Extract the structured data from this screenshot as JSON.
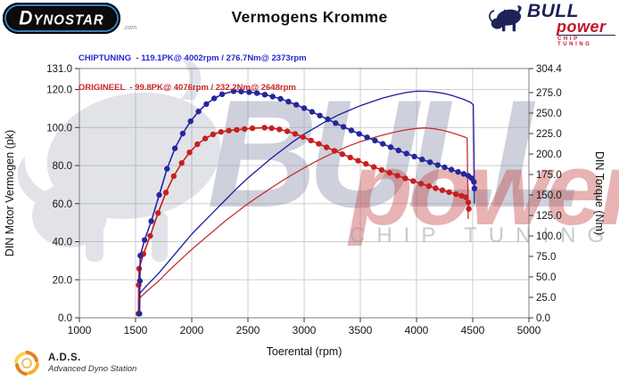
{
  "header": {
    "title": "Vermogens Kromme",
    "dynostar_logo": "YNOSTAR",
    "dynostar_logo_initial": "D",
    "dynostar_suffix": ".com",
    "bullpower_logo": {
      "bull": "BULL",
      "power": "power",
      "chip_tuning": "CHIP TUNING"
    }
  },
  "legend": {
    "chiptuning": "CHIPTUNING  - 119.1PK@ 4002rpm / 276.7Nm@ 2373rpm",
    "origineel": "ORIGINEEL  - 99.8PK@ 4076rpm / 232.2Nm@ 2648rpm"
  },
  "footer": {
    "ads_abbr": "A.D.S.",
    "ads_full": "Advanced Dyno Station"
  },
  "colors": {
    "chiptuning_blue": "#26269e",
    "origineel_red": "#c81e1e",
    "grid": "#cdcdd2",
    "plot_border": "#7f7f7f",
    "watermark_gray": "#8d94ad",
    "watermark_red": "#c44444"
  },
  "chart_data": {
    "type": "line",
    "title": "Vermogens Kromme",
    "xlabel": "Toerental (rpm)",
    "ylabel_left": "DIN Motor Vermogen (pk)",
    "ylabel_right": "DIN Torque (Nm)",
    "x_range": [
      1000,
      5000
    ],
    "y_left_range": [
      0,
      131
    ],
    "y_right_range": [
      0,
      304.4
    ],
    "x_tick_labels": [
      "1000",
      "1500",
      "2000",
      "2500",
      "3000",
      "3500",
      "4000",
      "4500",
      "5000"
    ],
    "y_left_tick_labels": [
      "131.0",
      "120.0",
      "100.0",
      "80.0",
      "60.0",
      "40.0",
      "20.0",
      "0.0"
    ],
    "y_right_tick_labels": [
      "304.4",
      "275.0",
      "250.0",
      "225.0",
      "200.0",
      "175.0",
      "150.0",
      "125.0",
      "100.0",
      "75.0",
      "50.0",
      "25.0",
      "0.0"
    ],
    "grid": true,
    "legend_position": "top-left",
    "watermark": {
      "bull": "BULL",
      "power": "power",
      "chip_tuning": "CHIP TUNING"
    },
    "series": [
      {
        "name": "ORIGINEEL power (pk)",
        "axis": "left",
        "color": "#c43030",
        "markers": false,
        "width": 1.3,
        "points": [
          [
            1525,
            2
          ],
          [
            1530,
            10
          ],
          [
            1600,
            14
          ],
          [
            1700,
            19
          ],
          [
            1800,
            25
          ],
          [
            1900,
            30.5
          ],
          [
            2000,
            36
          ],
          [
            2100,
            41
          ],
          [
            2200,
            46
          ],
          [
            2300,
            51
          ],
          [
            2400,
            55.5
          ],
          [
            2500,
            60
          ],
          [
            2600,
            64
          ],
          [
            2700,
            68
          ],
          [
            2800,
            71.8
          ],
          [
            2900,
            75.4
          ],
          [
            3000,
            78.8
          ],
          [
            3100,
            82
          ],
          [
            3200,
            85
          ],
          [
            3300,
            87.8
          ],
          [
            3400,
            90.4
          ],
          [
            3500,
            92.6
          ],
          [
            3600,
            94.4
          ],
          [
            3700,
            96
          ],
          [
            3800,
            97.5
          ],
          [
            3900,
            98.7
          ],
          [
            4000,
            99.5
          ],
          [
            4076,
            99.8
          ],
          [
            4150,
            99.4
          ],
          [
            4220,
            98.7
          ],
          [
            4290,
            97.7
          ],
          [
            4360,
            96.4
          ],
          [
            4420,
            95.2
          ],
          [
            4450,
            94.4
          ],
          [
            4455,
            75
          ],
          [
            4460,
            52
          ]
        ]
      },
      {
        "name": "CHIPTUNING power (pk)",
        "axis": "left",
        "color": "#1b1b9e",
        "markers": false,
        "width": 1.3,
        "points": [
          [
            1535,
            2
          ],
          [
            1540,
            13
          ],
          [
            1600,
            17
          ],
          [
            1700,
            23
          ],
          [
            1800,
            30
          ],
          [
            1900,
            37
          ],
          [
            2000,
            44
          ],
          [
            2100,
            50
          ],
          [
            2200,
            56
          ],
          [
            2300,
            62
          ],
          [
            2400,
            68
          ],
          [
            2500,
            73.5
          ],
          [
            2600,
            78.5
          ],
          [
            2700,
            83.5
          ],
          [
            2800,
            88
          ],
          [
            2900,
            92.5
          ],
          [
            3000,
            96.5
          ],
          [
            3100,
            100
          ],
          [
            3200,
            103.5
          ],
          [
            3300,
            106.5
          ],
          [
            3400,
            109
          ],
          [
            3500,
            111.5
          ],
          [
            3600,
            113.5
          ],
          [
            3700,
            115.5
          ],
          [
            3800,
            117
          ],
          [
            3900,
            118.3
          ],
          [
            4002,
            119.1
          ],
          [
            4100,
            119
          ],
          [
            4180,
            118.5
          ],
          [
            4260,
            117.7
          ],
          [
            4340,
            116.4
          ],
          [
            4420,
            114.8
          ],
          [
            4480,
            113.2
          ],
          [
            4505,
            112
          ],
          [
            4510,
            90
          ],
          [
            4515,
            60
          ]
        ]
      },
      {
        "name": "ORIGINEEL torque (Nm)",
        "axis": "right",
        "color": "#c81e1e",
        "markers": true,
        "width": 1.6,
        "points": [
          [
            1525,
            5
          ],
          [
            1528,
            40
          ],
          [
            1532,
            60
          ],
          [
            1570,
            78
          ],
          [
            1630,
            100
          ],
          [
            1700,
            128
          ],
          [
            1770,
            153
          ],
          [
            1840,
            173
          ],
          [
            1910,
            189
          ],
          [
            1980,
            202
          ],
          [
            2050,
            212
          ],
          [
            2120,
            219
          ],
          [
            2190,
            224
          ],
          [
            2260,
            227
          ],
          [
            2330,
            228.6
          ],
          [
            2400,
            229.6
          ],
          [
            2470,
            230.6
          ],
          [
            2540,
            231.4
          ],
          [
            2648,
            232.2
          ],
          [
            2710,
            231.6
          ],
          [
            2780,
            230.2
          ],
          [
            2850,
            227.8
          ],
          [
            2920,
            224.6
          ],
          [
            2990,
            220.8
          ],
          [
            3060,
            216.6
          ],
          [
            3130,
            212.4
          ],
          [
            3200,
            208.2
          ],
          [
            3270,
            204
          ],
          [
            3340,
            199.8
          ],
          [
            3410,
            195.8
          ],
          [
            3480,
            191.8
          ],
          [
            3550,
            188
          ],
          [
            3620,
            184.2
          ],
          [
            3690,
            180.6
          ],
          [
            3760,
            177
          ],
          [
            3830,
            173.6
          ],
          [
            3900,
            170.2
          ],
          [
            3970,
            167
          ],
          [
            4040,
            163.8
          ],
          [
            4110,
            160.8
          ],
          [
            4170,
            158.2
          ],
          [
            4230,
            155.8
          ],
          [
            4290,
            153.4
          ],
          [
            4350,
            151
          ],
          [
            4400,
            149
          ],
          [
            4440,
            147.2
          ],
          [
            4460,
            141
          ],
          [
            4465,
            133
          ]
        ]
      },
      {
        "name": "CHIPTUNING torque (Nm)",
        "axis": "right",
        "color": "#26269e",
        "markers": true,
        "width": 1.6,
        "points": [
          [
            1535,
            5
          ],
          [
            1538,
            45
          ],
          [
            1542,
            76
          ],
          [
            1580,
            95
          ],
          [
            1640,
            118
          ],
          [
            1710,
            150
          ],
          [
            1780,
            182
          ],
          [
            1850,
            207
          ],
          [
            1920,
            225
          ],
          [
            1990,
            240
          ],
          [
            2060,
            252
          ],
          [
            2130,
            261
          ],
          [
            2200,
            268
          ],
          [
            2270,
            273
          ],
          [
            2373,
            276.7
          ],
          [
            2440,
            276.4
          ],
          [
            2510,
            275.6
          ],
          [
            2580,
            274.4
          ],
          [
            2650,
            272.6
          ],
          [
            2720,
            270.2
          ],
          [
            2790,
            267.4
          ],
          [
            2860,
            264
          ],
          [
            2930,
            260.2
          ],
          [
            3000,
            256
          ],
          [
            3070,
            251.6
          ],
          [
            3140,
            247
          ],
          [
            3210,
            242.4
          ],
          [
            3280,
            237.8
          ],
          [
            3350,
            233.2
          ],
          [
            3420,
            228.8
          ],
          [
            3490,
            224.6
          ],
          [
            3560,
            220.4
          ],
          [
            3630,
            216.4
          ],
          [
            3700,
            212.4
          ],
          [
            3770,
            208.4
          ],
          [
            3840,
            204.4
          ],
          [
            3910,
            200.6
          ],
          [
            3980,
            197
          ],
          [
            4050,
            193.4
          ],
          [
            4120,
            190
          ],
          [
            4190,
            186.6
          ],
          [
            4250,
            183.8
          ],
          [
            4310,
            181
          ],
          [
            4370,
            178.2
          ],
          [
            4420,
            175.8
          ],
          [
            4460,
            173.4
          ],
          [
            4490,
            170.5
          ],
          [
            4510,
            166
          ],
          [
            4515,
            158
          ]
        ]
      }
    ],
    "annotations": {
      "chiptuning_peak_power": "119.1PK@ 4002rpm",
      "chiptuning_peak_torque": "276.7Nm@ 2373rpm",
      "origineel_peak_power": "99.8PK@ 4076rpm",
      "origineel_peak_torque": "232.2Nm@ 2648rpm"
    }
  }
}
